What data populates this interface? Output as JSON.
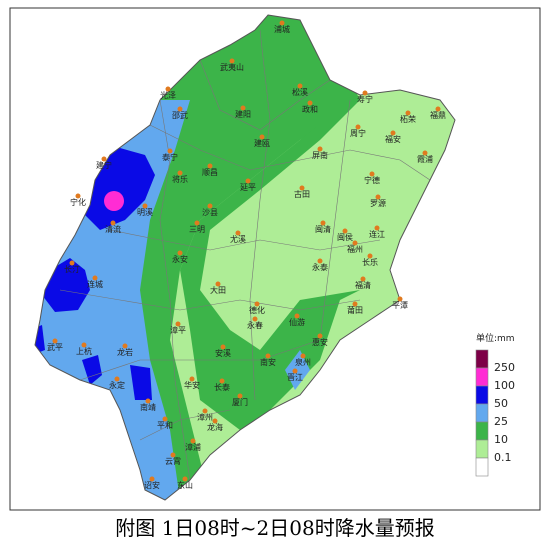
{
  "legend": {
    "unit": "单位:mm",
    "labels": [
      "250",
      "100",
      "50",
      "25",
      "10",
      "0.1"
    ],
    "colors": [
      "#7d0047",
      "#ff2cd4",
      "#0a0ae6",
      "#62a8ee",
      "#3cb449",
      "#aeed96",
      "#ffffff"
    ]
  },
  "cities": [
    "浦城",
    "武夷山",
    "松溪",
    "政和",
    "光泽",
    "邵武",
    "建阳",
    "建瓯",
    "寿宁",
    "柘荣",
    "福鼎",
    "周宁",
    "福安",
    "霞浦",
    "屏南",
    "宁德",
    "泰宁",
    "将乐",
    "顺昌",
    "延平",
    "古田",
    "罗源",
    "建宁",
    "明溪",
    "沙县",
    "三明",
    "尤溪",
    "闽清",
    "闽侯",
    "连江",
    "福州",
    "长乐",
    "清流",
    "宁化",
    "永安",
    "永泰",
    "福清",
    "平潭",
    "长汀",
    "连城",
    "大田",
    "德化",
    "莆田",
    "仙游",
    "武平",
    "上杭",
    "龙岩",
    "漳平",
    "安溪",
    "南安",
    "泉州",
    "晋江",
    "永定",
    "华安",
    "长泰",
    "厦门",
    "南靖",
    "漳州",
    "龙海",
    "平和",
    "云霄",
    "漳浦",
    "诏安",
    "东山",
    "永春",
    "惠安"
  ],
  "caption": "附图 1日08时~2日08时降水量预报"
}
